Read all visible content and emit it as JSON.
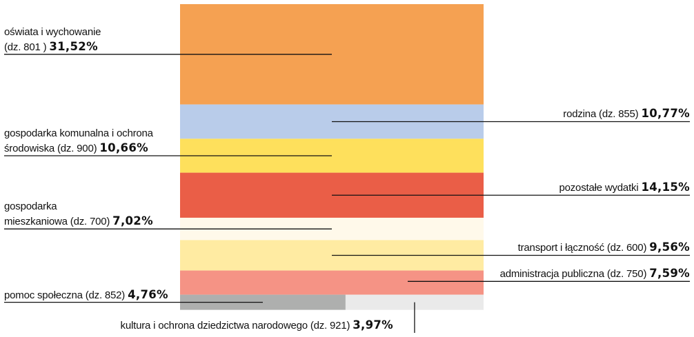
{
  "chart_data": {
    "type": "stacked-area-mosaic",
    "unit": "%",
    "segments": [
      {
        "id": "oswiata",
        "label_lines": [
          "oświata i wychowanie",
          "(dz. 801 )"
        ],
        "value": 31.52,
        "value_text": "31,52%",
        "color": "#F5A152",
        "side": "left"
      },
      {
        "id": "rodzina",
        "label_lines": [
          "rodzina (dz. 855)"
        ],
        "value": 10.77,
        "value_text": "10,77%",
        "color": "#B9CCEA",
        "side": "right"
      },
      {
        "id": "gospodarka-komunalna",
        "label_lines": [
          "gospodarka komunalna i ochrona",
          "środowiska (dz. 900)"
        ],
        "value": 10.66,
        "value_text": "10,66%",
        "color": "#FEE05C",
        "side": "left"
      },
      {
        "id": "pozostale",
        "label_lines": [
          "pozostałe wydatki"
        ],
        "value": 14.15,
        "value_text": "14,15%",
        "color": "#EA5E47",
        "side": "right"
      },
      {
        "id": "gospodarka-mieszkaniowa",
        "label_lines": [
          "gospodarka",
          "mieszkaniowa (dz. 700)"
        ],
        "value": 7.02,
        "value_text": "7,02%",
        "color": "#FFF9EA",
        "side": "left"
      },
      {
        "id": "transport",
        "label_lines": [
          "transport i łączność  (dz. 600)"
        ],
        "value": 9.56,
        "value_text": "9,56%",
        "color": "#FFEBA2",
        "side": "right"
      },
      {
        "id": "administracja",
        "label_lines": [
          "administracja publiczna (dz. 750)"
        ],
        "value": 7.59,
        "value_text": "7,59%",
        "color": "#F59385",
        "side": "right"
      },
      {
        "id": "pomoc",
        "label_lines": [
          "pomoc społeczna (dz. 852)"
        ],
        "value": 4.76,
        "value_text": "4,76%",
        "color": "#AEAFAE",
        "side": "left"
      },
      {
        "id": "kultura",
        "label_lines": [
          "kultura i ochrona dziedzictwa narodowego (dz. 921)"
        ],
        "value": 3.97,
        "value_text": "3,97%",
        "color": "#EAEAEA",
        "side": "bottom"
      }
    ]
  }
}
